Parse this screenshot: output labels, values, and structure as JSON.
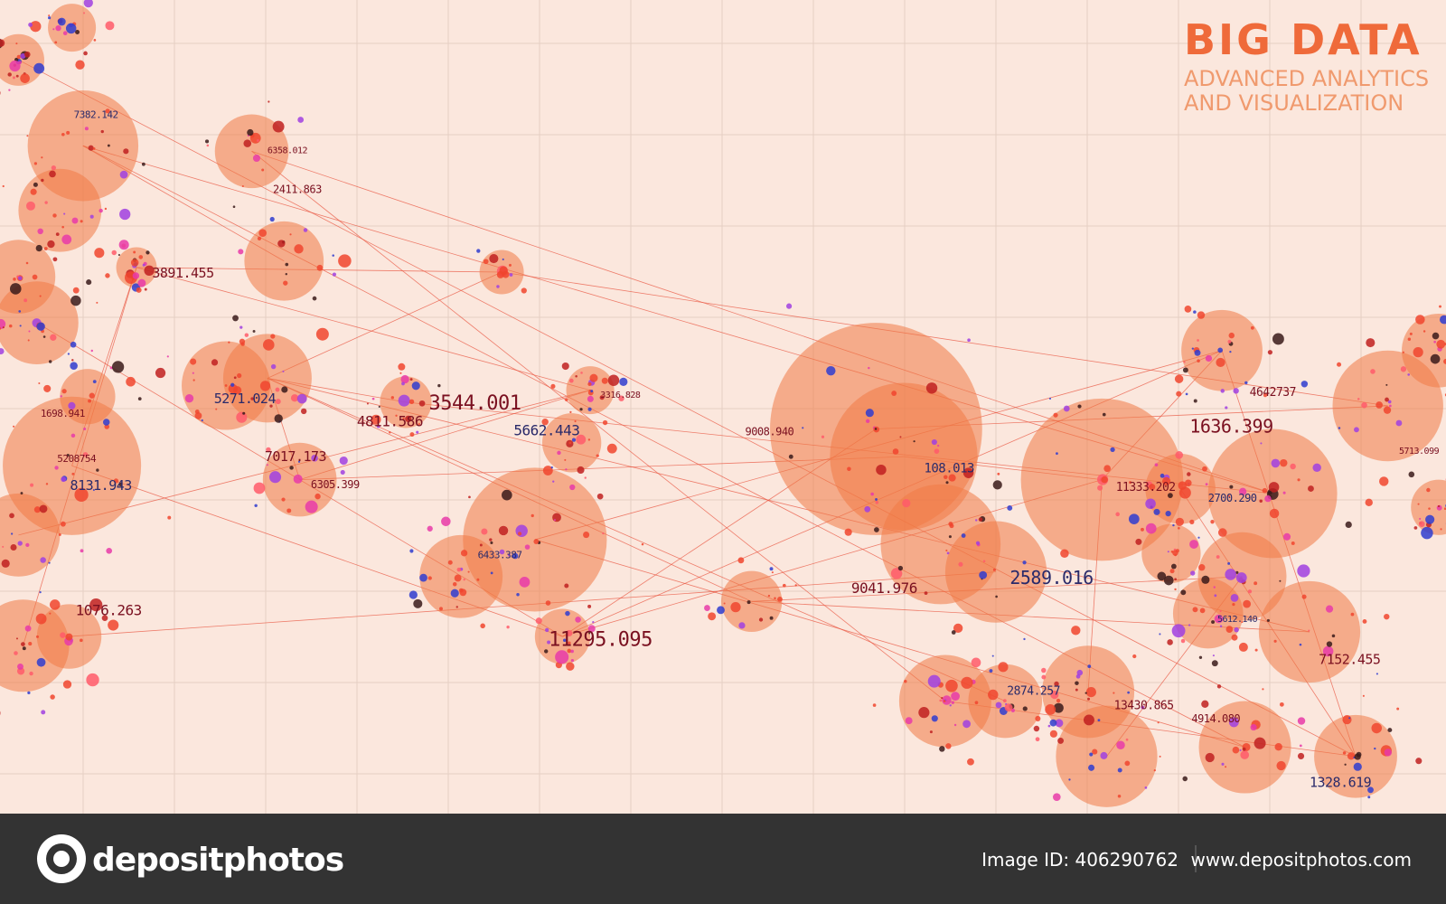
{
  "header": {
    "title": "BIG DATA",
    "subtitle_lines": [
      "ADVANCED ANALYTICS",
      "AND VISUALIZATION"
    ]
  },
  "labels": [
    "3891.455",
    "5271.024",
    "4811.586",
    "3544.001",
    "5662.443",
    "7017.173",
    "6305.399",
    "8131.943",
    "5208754",
    "1076.263",
    "6433.387",
    "11295.095",
    "9041.976",
    "108.013",
    "1636.399",
    "11333.202",
    "2700.290",
    "4642737",
    "7152.455",
    "2874.257",
    "13430.865",
    "4914.080",
    "2589.016",
    "6358.012",
    "2411.863",
    "7382.142",
    "3316.828",
    "9008.940",
    "5612.140",
    "5713.099",
    "1698.941",
    "1328.619"
  ],
  "footer": {
    "brand": "depositphotos",
    "image_id": "Image ID: 406290762",
    "site": "www.depositphotos.com"
  }
}
